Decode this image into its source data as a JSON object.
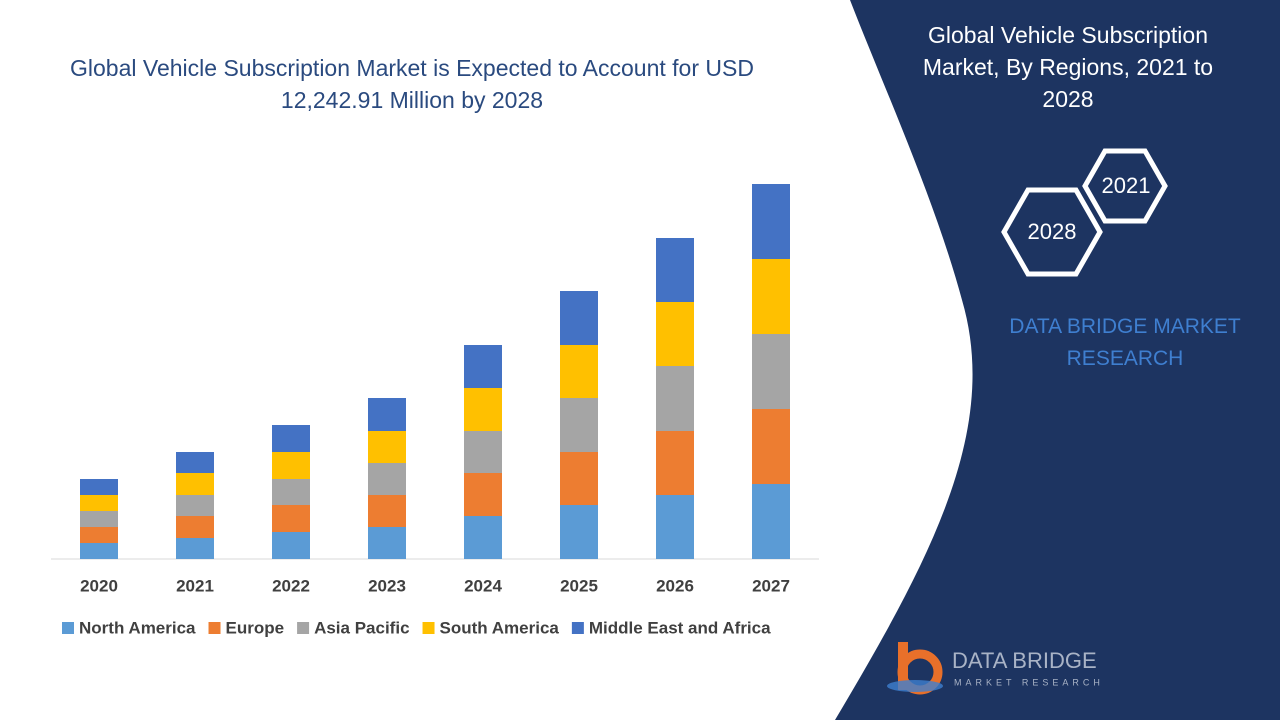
{
  "chart_data": {
    "type": "stacked-bar",
    "title": "Global Vehicle Subscription Market is Expected to Account for USD 12,242.91 Million by 2028",
    "categories": [
      "2020",
      "2021",
      "2022",
      "2023",
      "2024",
      "2025",
      "2026",
      "2027"
    ],
    "series": [
      {
        "name": "North America",
        "color": "#5b9bd5",
        "values": [
          16,
          21,
          27,
          32,
          43,
          54,
          64,
          75
        ]
      },
      {
        "name": "Europe",
        "color": "#ed7d31",
        "values": [
          16,
          22,
          27,
          32,
          43,
          53,
          64,
          75
        ]
      },
      {
        "name": "Asia Pacific",
        "color": "#a5a5a5",
        "values": [
          16,
          21,
          26,
          32,
          42,
          54,
          65,
          75
        ]
      },
      {
        "name": "South America",
        "color": "#ffc000",
        "values": [
          16,
          22,
          27,
          32,
          43,
          53,
          64,
          75
        ]
      },
      {
        "name": "Middle East and Africa",
        "color": "#4472c4",
        "values": [
          16,
          21,
          27,
          33,
          43,
          54,
          64,
          75
        ]
      }
    ],
    "ylim": [
      0,
      400
    ],
    "legend": "bottom"
  },
  "panel": {
    "title": "Global Vehicle Subscription Market, By Regions, 2021 to 2028",
    "hexagons": [
      "2021",
      "2028"
    ],
    "brand": "DATA BRIDGE MARKET RESEARCH",
    "logo": {
      "name": "DATA BRIDGE",
      "tagline": "MARKET RESEARCH"
    }
  }
}
